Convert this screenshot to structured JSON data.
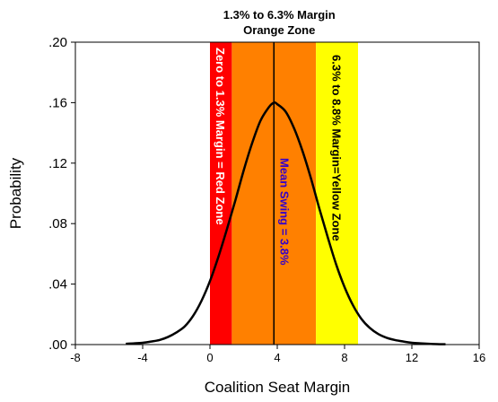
{
  "chart_data": {
    "type": "area",
    "title_lines": [
      "1.3% to 6.3% Margin",
      "Orange Zone"
    ],
    "xlabel": "Coalition Seat Margin",
    "ylabel": "Probability",
    "xlim": [
      -8,
      16
    ],
    "ylim": [
      0,
      0.2
    ],
    "x_ticks": [
      -8,
      -4,
      0,
      4,
      8,
      12,
      16
    ],
    "x_tick_labels": [
      "-8",
      "-4",
      "0",
      "4",
      "8",
      "12",
      "16"
    ],
    "y_ticks": [
      0,
      0.04,
      0.08,
      0.12,
      0.16,
      0.2
    ],
    "y_tick_labels": [
      ".00",
      ".04",
      ".08",
      ".12",
      ".16",
      ".20"
    ],
    "zones": [
      {
        "name": "red",
        "x0": 0,
        "x1": 1.3,
        "color": "#ff0000",
        "label": "Zero to 1.3% Margin = Red Zone",
        "label_color": "#ffffff"
      },
      {
        "name": "orange",
        "x0": 1.3,
        "x1": 6.3,
        "color": "#ff8000"
      },
      {
        "name": "yellow",
        "x0": 6.3,
        "x1": 8.8,
        "color": "#ffff00",
        "label": "6.3% to 8.8% Margin=Yellow Zone",
        "label_color": "#000000"
      }
    ],
    "mean_line": {
      "x": 3.8,
      "label": "Mean Swing = 3.8%",
      "label_color": "#3300cc"
    },
    "series": [
      {
        "color": "#000000",
        "x": [
          -5.0,
          -4.5,
          -4.0,
          -3.5,
          -3.0,
          -2.5,
          -2.0,
          -1.5,
          -1.0,
          -0.5,
          0.0,
          0.5,
          1.0,
          1.5,
          2.0,
          2.5,
          3.0,
          3.5,
          3.8,
          4.0,
          4.5,
          5.0,
          5.5,
          6.0,
          6.5,
          7.0,
          7.5,
          8.0,
          8.5,
          9.0,
          9.5,
          10.0,
          10.5,
          11.0,
          11.5,
          12.0,
          12.5,
          13.0,
          13.5,
          14.0
        ],
        "y": [
          0.0005,
          0.0008,
          0.0012,
          0.002,
          0.003,
          0.005,
          0.008,
          0.012,
          0.019,
          0.029,
          0.042,
          0.058,
          0.076,
          0.095,
          0.115,
          0.133,
          0.148,
          0.157,
          0.16,
          0.159,
          0.154,
          0.143,
          0.128,
          0.11,
          0.09,
          0.071,
          0.053,
          0.038,
          0.026,
          0.017,
          0.011,
          0.007,
          0.0045,
          0.003,
          0.002,
          0.0012,
          0.0008,
          0.0005,
          0.0003,
          0.0002
        ]
      }
    ]
  }
}
